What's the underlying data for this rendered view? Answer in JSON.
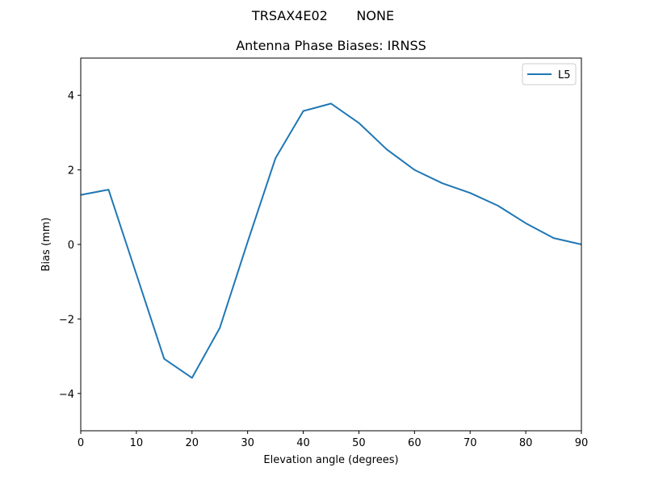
{
  "figure": {
    "suptitle": "TRSAX4E02       NONE",
    "title": "Antenna Phase Biases: IRNSS"
  },
  "chart_data": {
    "type": "line",
    "title": "Antenna Phase Biases: IRNSS",
    "suptitle": "TRSAX4E02       NONE",
    "xlabel": "Elevation angle (degrees)",
    "ylabel": "Bias (mm)",
    "xlim": [
      0,
      90
    ],
    "ylim": [
      -5,
      5
    ],
    "xticks": [
      0,
      10,
      20,
      30,
      40,
      50,
      60,
      70,
      80,
      90
    ],
    "yticks": [
      -4,
      -2,
      0,
      2,
      4
    ],
    "ytick_labels": [
      "−4",
      "−2",
      "0",
      "2",
      "4"
    ],
    "grid": false,
    "legend_position": "upper right",
    "x": [
      0,
      5,
      10,
      15,
      20,
      25,
      30,
      35,
      40,
      45,
      50,
      55,
      60,
      65,
      70,
      75,
      80,
      85,
      90
    ],
    "series": [
      {
        "name": "L5",
        "color": "#1f77b4",
        "values": [
          1.33,
          1.47,
          -0.8,
          -3.07,
          -3.58,
          -2.24,
          0.07,
          2.31,
          3.58,
          3.78,
          3.26,
          2.55,
          2.0,
          1.64,
          1.38,
          1.04,
          0.57,
          0.17,
          0.0
        ]
      }
    ]
  }
}
